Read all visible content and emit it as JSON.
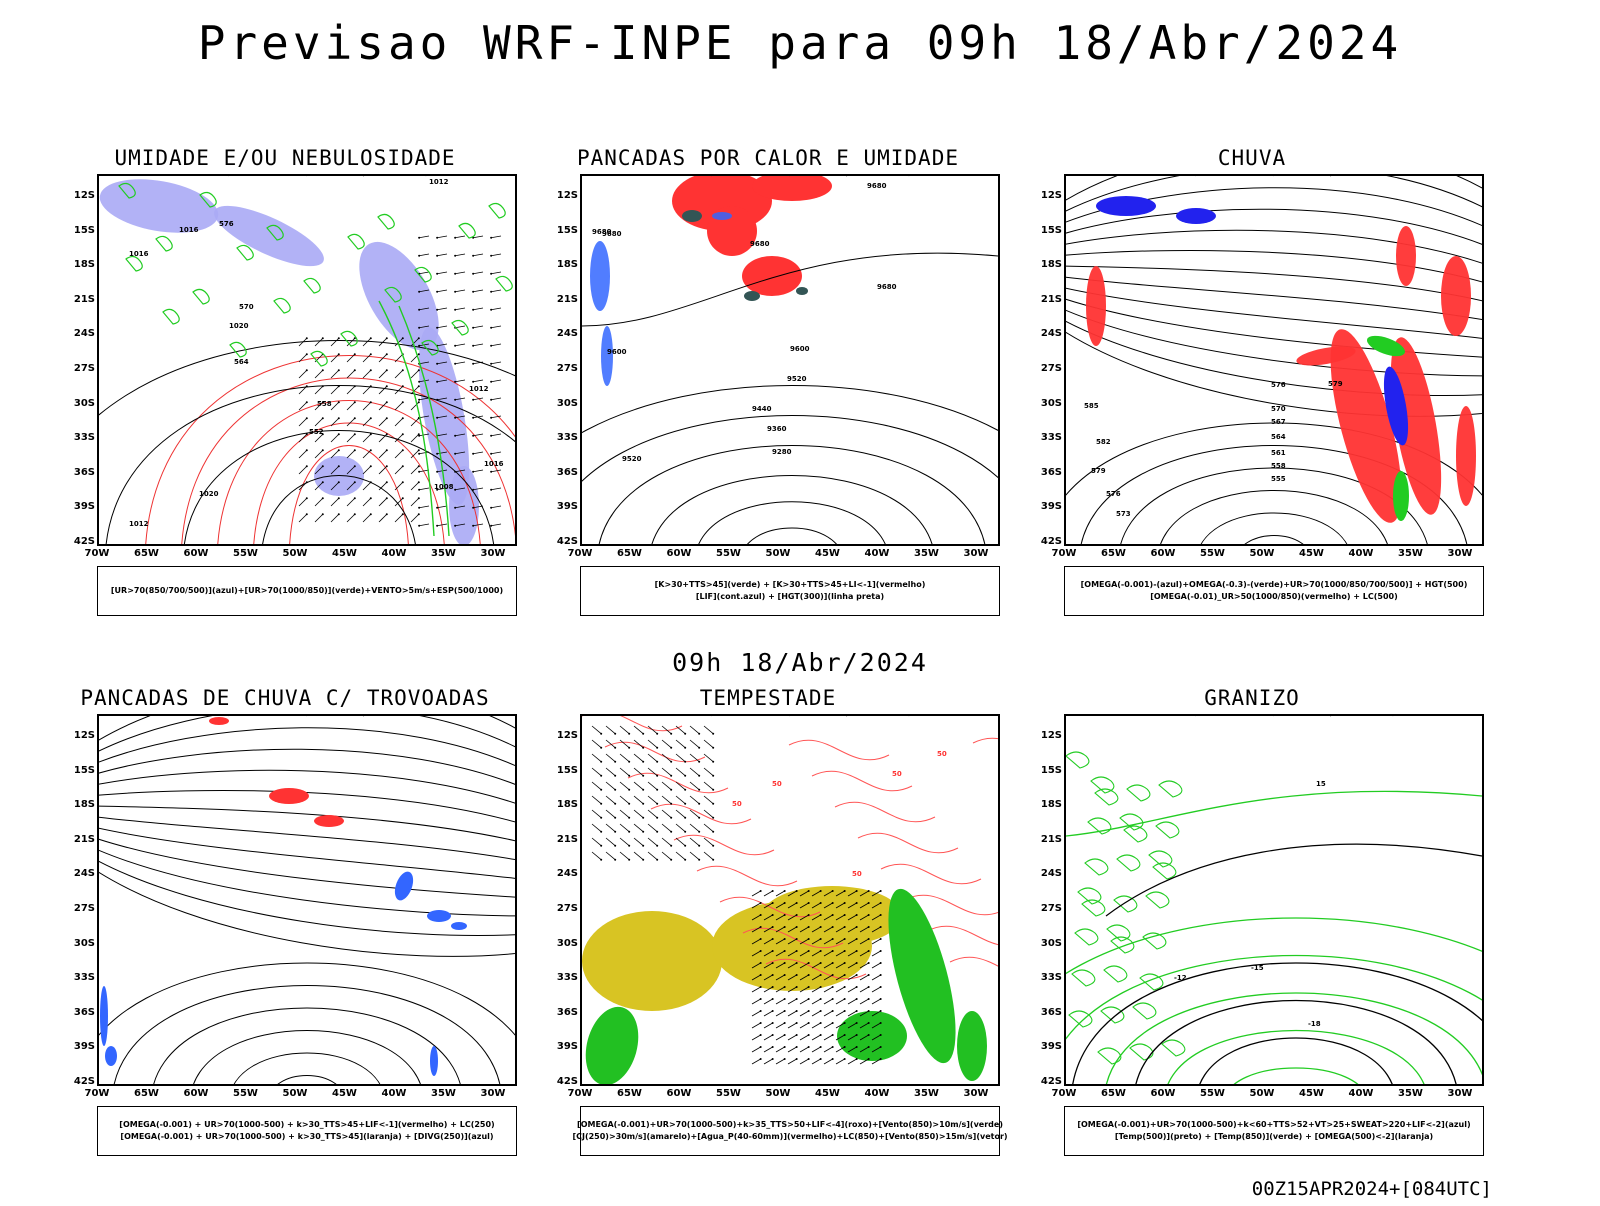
{
  "header": {
    "title": "Previsao WRF-INPE  para 09h 18/Abr/2024"
  },
  "mid_label": "09h 18/Abr/2024",
  "footer": "00Z15APR2024+[084UTC]",
  "axes": {
    "y_ticks": [
      "12S",
      "15S",
      "18S",
      "21S",
      "24S",
      "27S",
      "30S",
      "33S",
      "36S",
      "39S",
      "42S"
    ],
    "x_ticks": [
      "70W",
      "65W",
      "60W",
      "55W",
      "50W",
      "45W",
      "40W",
      "35W",
      "30W"
    ]
  },
  "panels": [
    {
      "title": "UMIDADE E/OU NEBULOSIDADE",
      "legend": [
        "[UR>70(850/700/500)](azul)+[UR>70(1000/850)](verde)+VENTO>5m/s+ESP(500/1000)"
      ],
      "contour_labels": [
        "1012",
        "1016",
        "1020",
        "1016",
        "1012",
        "1008",
        "1016",
        "1020",
        "1012",
        "576",
        "570",
        "564",
        "558",
        "552"
      ]
    },
    {
      "title": "PANCADAS POR CALOR E UMIDADE",
      "legend": [
        "[K>30+TTS>45](verde) + [K>30+TTS>45+LI<-1](vermelho)",
        "[LIF](cont.azul) + [HGT(300)](linha preta)"
      ],
      "contour_labels": [
        "9680",
        "9680",
        "9680",
        "9600",
        "9600",
        "9520",
        "9440",
        "9360",
        "9280",
        "9520",
        "9680",
        "9680"
      ]
    },
    {
      "title": "CHUVA",
      "legend": [
        "[OMEGA(-0.001)-(azul)+OMEGA(-0.3)-(verde)+UR>70(1000/850/700/500)] + HGT(500)",
        "[OMEGA(-0.01)_UR>50(1000/850)(vermelho) + LC(500)"
      ],
      "contour_labels": [
        "585",
        "582",
        "579",
        "576",
        "573",
        "576",
        "570",
        "567",
        "564",
        "561",
        "558",
        "555",
        "579"
      ]
    },
    {
      "title": "PANCADAS DE CHUVA C/ TROVOADAS",
      "legend": [
        "[OMEGA(-0.001) + UR>70(1000-500) + k>30_TTS>45+LIF<-1](vermelho) + LC(250)",
        "[OMEGA(-0.001) + UR>70(1000-500) + k>30_TTS>45](laranja) + [DIVG(250)](azul)"
      ],
      "contour_labels": []
    },
    {
      "title": "TEMPESTADE",
      "legend": [
        "[OMEGA(-0.001)+UR>70(1000-500)+k>35_TTS>50+LIF<-4](roxo)+[Vento(850)>10m/s](verde)",
        "[CJ(250)>30m/s](amarelo)+[Agua_P(40-60mm)](vermelho)+LC(850)+[Vento(850)>15m/s](vetor)"
      ],
      "contour_labels": [
        "50",
        "50",
        "50",
        "50",
        "50"
      ]
    },
    {
      "title": "GRANIZO",
      "legend": [
        "[OMEGA(-0.001)+UR>70(1000-500)+k<60+TTS>52+VT>25+SWEAT>220+LIF<-2](azul)",
        "[Temp(500)](preto) + [Temp(850)](verde) + [OMEGA(500)<-2](laranja)"
      ],
      "contour_labels": [
        "-12",
        "-15",
        "-18",
        "15"
      ]
    }
  ]
}
